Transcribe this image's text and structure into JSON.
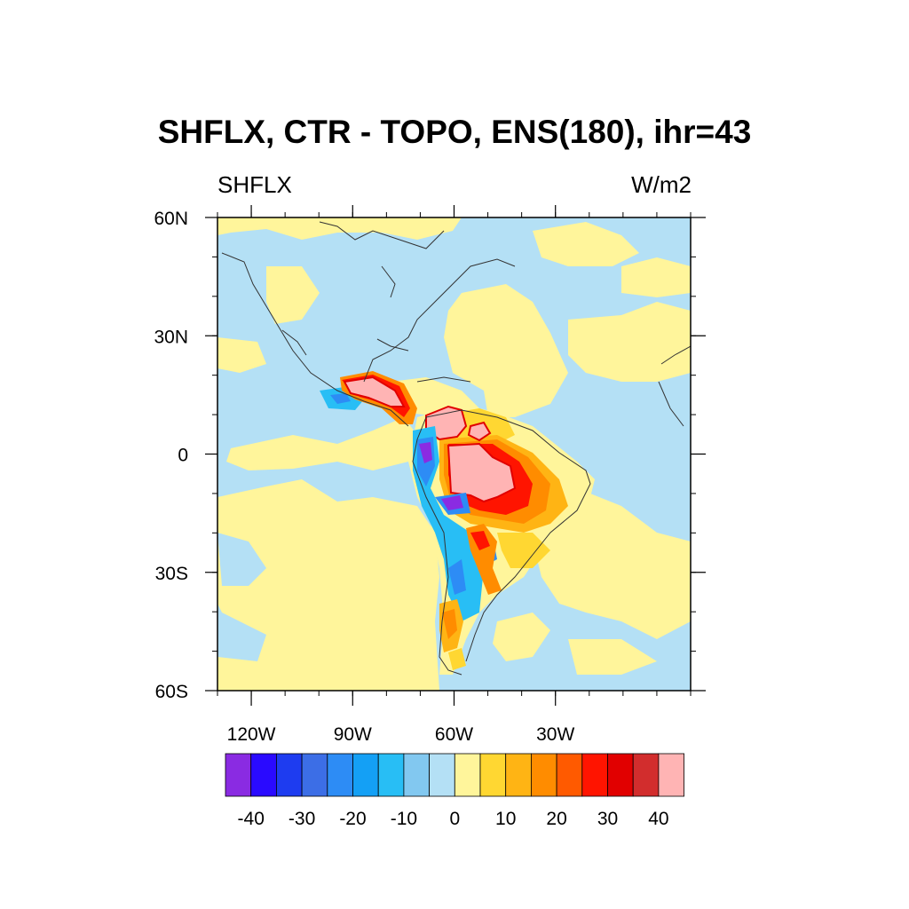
{
  "title": "SHFLX, CTR - TOPO, ENS(180), ihr=43",
  "left_label": "SHFLX",
  "right_label": "W/m2",
  "map": {
    "lon_range": [
      -130,
      10
    ],
    "lat_range": [
      -60,
      60
    ],
    "lat_ticks": [
      {
        "value": 60,
        "label": "60N"
      },
      {
        "value": 30,
        "label": "30N"
      },
      {
        "value": 0,
        "label": "0"
      },
      {
        "value": -30,
        "label": "30S"
      },
      {
        "value": -60,
        "label": "60S"
      }
    ],
    "lon_ticks": [
      {
        "value": -120,
        "label": "120W"
      },
      {
        "value": -90,
        "label": "90W"
      },
      {
        "value": -60,
        "label": "60W"
      },
      {
        "value": -30,
        "label": "30W"
      }
    ]
  },
  "colorbar": {
    "colors": [
      "#8a2be2",
      "#2a0aff",
      "#1e3cf0",
      "#3c6ee6",
      "#2d8cf5",
      "#14a0f5",
      "#28bef5",
      "#82c8f0",
      "#b4e0f5",
      "#fff59b",
      "#ffd732",
      "#ffb414",
      "#ff8c00",
      "#ff5a00",
      "#ff1400",
      "#e10000",
      "#d22d2d",
      "#ffb4b4"
    ],
    "labels": [
      {
        "index": 1,
        "text": "-40"
      },
      {
        "index": 3,
        "text": "-30"
      },
      {
        "index": 5,
        "text": "-20"
      },
      {
        "index": 7,
        "text": "-10"
      },
      {
        "index": 9,
        "text": "0"
      },
      {
        "index": 11,
        "text": "10"
      },
      {
        "index": 13,
        "text": "20"
      },
      {
        "index": 15,
        "text": "30"
      },
      {
        "index": 17,
        "text": "40"
      }
    ]
  }
}
